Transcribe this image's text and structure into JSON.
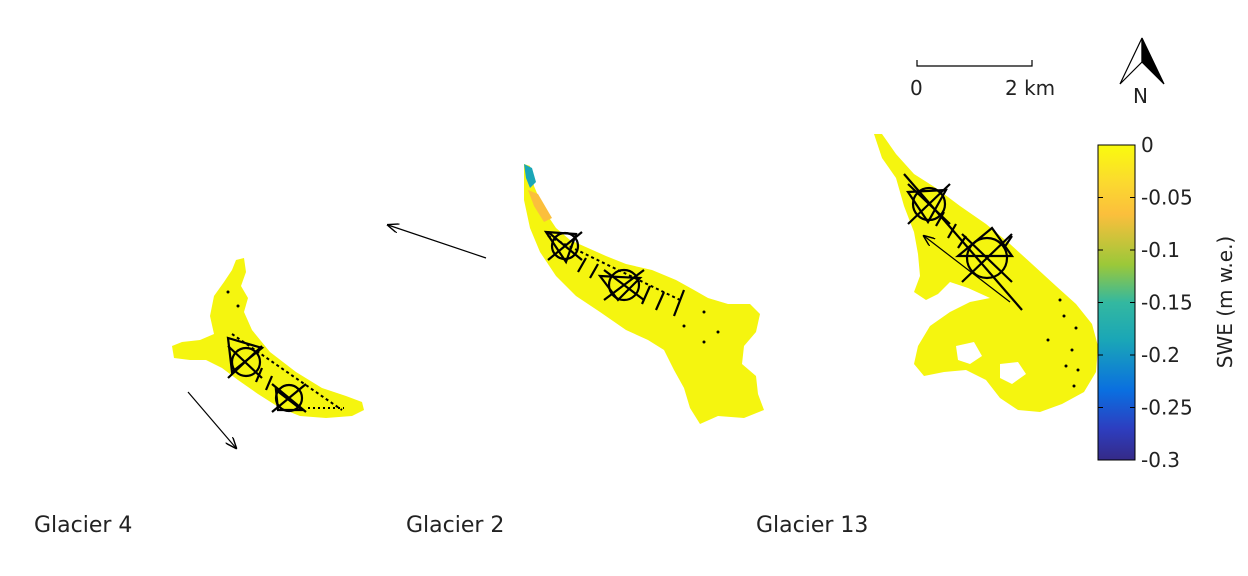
{
  "glaciers": [
    {
      "name": "Glacier 4"
    },
    {
      "name": "Glacier 2"
    },
    {
      "name": "Glacier 13"
    }
  ],
  "scalebar": {
    "start_label": "0",
    "end_label": "2 km"
  },
  "north_arrow": {
    "label": "N",
    "icon": "north-arrow-icon"
  },
  "colorbar": {
    "title": "SWE (m w.e.)",
    "min": -0.3,
    "max": 0,
    "tick_labels": [
      "0",
      "-0.05",
      "-0.1",
      "-0.15",
      "-0.2",
      "-0.25",
      "-0.3"
    ],
    "colors": [
      "#f9fb0e",
      "#fbbf3c",
      "#9bc839",
      "#1aa6b7",
      "#0a6fe0",
      "#2d3ec0",
      "#352a87"
    ]
  },
  "colors": {
    "glacier_fill": "#f5f50f",
    "survey_marks": "#000000"
  }
}
